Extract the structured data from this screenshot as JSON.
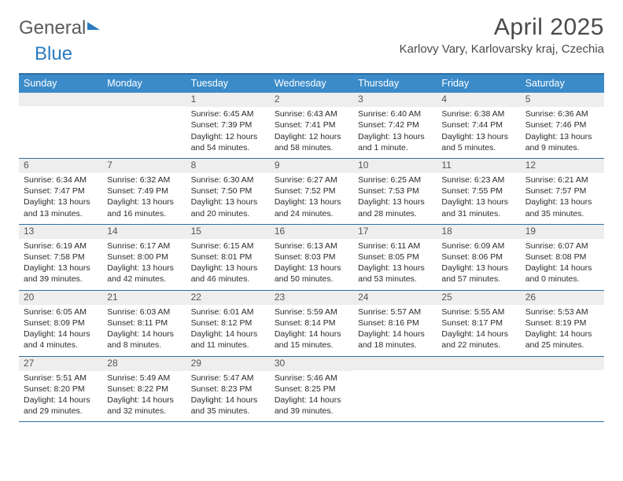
{
  "logo": {
    "part1": "General",
    "part2": "Blue"
  },
  "title": "April 2025",
  "subtitle": "Karlovy Vary, Karlovarsky kraj, Czechia",
  "colors": {
    "header_bg": "#3b8bc9",
    "border": "#2f6fa3",
    "daynum_bg": "#eeeeee",
    "text": "#333333"
  },
  "days_of_week": [
    "Sunday",
    "Monday",
    "Tuesday",
    "Wednesday",
    "Thursday",
    "Friday",
    "Saturday"
  ],
  "weeks": [
    [
      {
        "n": "",
        "sunrise": "",
        "sunset": "",
        "daylight1": "",
        "daylight2": ""
      },
      {
        "n": "",
        "sunrise": "",
        "sunset": "",
        "daylight1": "",
        "daylight2": ""
      },
      {
        "n": "1",
        "sunrise": "Sunrise: 6:45 AM",
        "sunset": "Sunset: 7:39 PM",
        "daylight1": "Daylight: 12 hours",
        "daylight2": "and 54 minutes."
      },
      {
        "n": "2",
        "sunrise": "Sunrise: 6:43 AM",
        "sunset": "Sunset: 7:41 PM",
        "daylight1": "Daylight: 12 hours",
        "daylight2": "and 58 minutes."
      },
      {
        "n": "3",
        "sunrise": "Sunrise: 6:40 AM",
        "sunset": "Sunset: 7:42 PM",
        "daylight1": "Daylight: 13 hours",
        "daylight2": "and 1 minute."
      },
      {
        "n": "4",
        "sunrise": "Sunrise: 6:38 AM",
        "sunset": "Sunset: 7:44 PM",
        "daylight1": "Daylight: 13 hours",
        "daylight2": "and 5 minutes."
      },
      {
        "n": "5",
        "sunrise": "Sunrise: 6:36 AM",
        "sunset": "Sunset: 7:46 PM",
        "daylight1": "Daylight: 13 hours",
        "daylight2": "and 9 minutes."
      }
    ],
    [
      {
        "n": "6",
        "sunrise": "Sunrise: 6:34 AM",
        "sunset": "Sunset: 7:47 PM",
        "daylight1": "Daylight: 13 hours",
        "daylight2": "and 13 minutes."
      },
      {
        "n": "7",
        "sunrise": "Sunrise: 6:32 AM",
        "sunset": "Sunset: 7:49 PM",
        "daylight1": "Daylight: 13 hours",
        "daylight2": "and 16 minutes."
      },
      {
        "n": "8",
        "sunrise": "Sunrise: 6:30 AM",
        "sunset": "Sunset: 7:50 PM",
        "daylight1": "Daylight: 13 hours",
        "daylight2": "and 20 minutes."
      },
      {
        "n": "9",
        "sunrise": "Sunrise: 6:27 AM",
        "sunset": "Sunset: 7:52 PM",
        "daylight1": "Daylight: 13 hours",
        "daylight2": "and 24 minutes."
      },
      {
        "n": "10",
        "sunrise": "Sunrise: 6:25 AM",
        "sunset": "Sunset: 7:53 PM",
        "daylight1": "Daylight: 13 hours",
        "daylight2": "and 28 minutes."
      },
      {
        "n": "11",
        "sunrise": "Sunrise: 6:23 AM",
        "sunset": "Sunset: 7:55 PM",
        "daylight1": "Daylight: 13 hours",
        "daylight2": "and 31 minutes."
      },
      {
        "n": "12",
        "sunrise": "Sunrise: 6:21 AM",
        "sunset": "Sunset: 7:57 PM",
        "daylight1": "Daylight: 13 hours",
        "daylight2": "and 35 minutes."
      }
    ],
    [
      {
        "n": "13",
        "sunrise": "Sunrise: 6:19 AM",
        "sunset": "Sunset: 7:58 PM",
        "daylight1": "Daylight: 13 hours",
        "daylight2": "and 39 minutes."
      },
      {
        "n": "14",
        "sunrise": "Sunrise: 6:17 AM",
        "sunset": "Sunset: 8:00 PM",
        "daylight1": "Daylight: 13 hours",
        "daylight2": "and 42 minutes."
      },
      {
        "n": "15",
        "sunrise": "Sunrise: 6:15 AM",
        "sunset": "Sunset: 8:01 PM",
        "daylight1": "Daylight: 13 hours",
        "daylight2": "and 46 minutes."
      },
      {
        "n": "16",
        "sunrise": "Sunrise: 6:13 AM",
        "sunset": "Sunset: 8:03 PM",
        "daylight1": "Daylight: 13 hours",
        "daylight2": "and 50 minutes."
      },
      {
        "n": "17",
        "sunrise": "Sunrise: 6:11 AM",
        "sunset": "Sunset: 8:05 PM",
        "daylight1": "Daylight: 13 hours",
        "daylight2": "and 53 minutes."
      },
      {
        "n": "18",
        "sunrise": "Sunrise: 6:09 AM",
        "sunset": "Sunset: 8:06 PM",
        "daylight1": "Daylight: 13 hours",
        "daylight2": "and 57 minutes."
      },
      {
        "n": "19",
        "sunrise": "Sunrise: 6:07 AM",
        "sunset": "Sunset: 8:08 PM",
        "daylight1": "Daylight: 14 hours",
        "daylight2": "and 0 minutes."
      }
    ],
    [
      {
        "n": "20",
        "sunrise": "Sunrise: 6:05 AM",
        "sunset": "Sunset: 8:09 PM",
        "daylight1": "Daylight: 14 hours",
        "daylight2": "and 4 minutes."
      },
      {
        "n": "21",
        "sunrise": "Sunrise: 6:03 AM",
        "sunset": "Sunset: 8:11 PM",
        "daylight1": "Daylight: 14 hours",
        "daylight2": "and 8 minutes."
      },
      {
        "n": "22",
        "sunrise": "Sunrise: 6:01 AM",
        "sunset": "Sunset: 8:12 PM",
        "daylight1": "Daylight: 14 hours",
        "daylight2": "and 11 minutes."
      },
      {
        "n": "23",
        "sunrise": "Sunrise: 5:59 AM",
        "sunset": "Sunset: 8:14 PM",
        "daylight1": "Daylight: 14 hours",
        "daylight2": "and 15 minutes."
      },
      {
        "n": "24",
        "sunrise": "Sunrise: 5:57 AM",
        "sunset": "Sunset: 8:16 PM",
        "daylight1": "Daylight: 14 hours",
        "daylight2": "and 18 minutes."
      },
      {
        "n": "25",
        "sunrise": "Sunrise: 5:55 AM",
        "sunset": "Sunset: 8:17 PM",
        "daylight1": "Daylight: 14 hours",
        "daylight2": "and 22 minutes."
      },
      {
        "n": "26",
        "sunrise": "Sunrise: 5:53 AM",
        "sunset": "Sunset: 8:19 PM",
        "daylight1": "Daylight: 14 hours",
        "daylight2": "and 25 minutes."
      }
    ],
    [
      {
        "n": "27",
        "sunrise": "Sunrise: 5:51 AM",
        "sunset": "Sunset: 8:20 PM",
        "daylight1": "Daylight: 14 hours",
        "daylight2": "and 29 minutes."
      },
      {
        "n": "28",
        "sunrise": "Sunrise: 5:49 AM",
        "sunset": "Sunset: 8:22 PM",
        "daylight1": "Daylight: 14 hours",
        "daylight2": "and 32 minutes."
      },
      {
        "n": "29",
        "sunrise": "Sunrise: 5:47 AM",
        "sunset": "Sunset: 8:23 PM",
        "daylight1": "Daylight: 14 hours",
        "daylight2": "and 35 minutes."
      },
      {
        "n": "30",
        "sunrise": "Sunrise: 5:46 AM",
        "sunset": "Sunset: 8:25 PM",
        "daylight1": "Daylight: 14 hours",
        "daylight2": "and 39 minutes."
      },
      {
        "n": "",
        "sunrise": "",
        "sunset": "",
        "daylight1": "",
        "daylight2": ""
      },
      {
        "n": "",
        "sunrise": "",
        "sunset": "",
        "daylight1": "",
        "daylight2": ""
      },
      {
        "n": "",
        "sunrise": "",
        "sunset": "",
        "daylight1": "",
        "daylight2": ""
      }
    ]
  ]
}
